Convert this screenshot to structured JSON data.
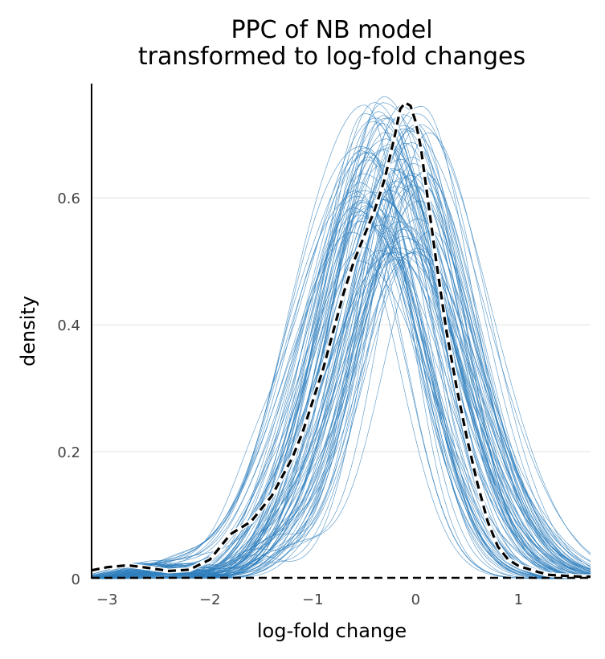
{
  "chart_data": {
    "type": "line",
    "title": [
      "PPC of NB model",
      "transformed to log-fold changes"
    ],
    "xlabel": "log-fold change",
    "ylabel": "density",
    "xlim": [
      -3.15,
      1.7
    ],
    "ylim": [
      0,
      0.78
    ],
    "xticks": [
      {
        "value": -3,
        "label": "−3"
      },
      {
        "value": -2,
        "label": "−2"
      },
      {
        "value": -1,
        "label": "−1"
      },
      {
        "value": 0,
        "label": "0"
      },
      {
        "value": 1,
        "label": "1"
      }
    ],
    "yticks": [
      {
        "value": 0,
        "label": "0"
      },
      {
        "value": 0.2,
        "label": "0.2"
      },
      {
        "value": 0.4,
        "label": "0.4"
      },
      {
        "value": 0.6,
        "label": "0.6"
      }
    ],
    "grid": "horizontal",
    "colors": {
      "posterior_draws": "#2f7fbd",
      "observed": "#000000",
      "grid": "#e0e0e0"
    },
    "series": [
      {
        "role": "observed",
        "style": "dashed",
        "x": [
          -3.15,
          -3.0,
          -2.8,
          -2.6,
          -2.4,
          -2.2,
          -2.0,
          -1.9,
          -1.8,
          -1.7,
          -1.6,
          -1.5,
          -1.4,
          -1.3,
          -1.2,
          -1.1,
          -1.0,
          -0.9,
          -0.8,
          -0.7,
          -0.6,
          -0.5,
          -0.4,
          -0.3,
          -0.2,
          -0.15,
          -0.1,
          -0.05,
          0.0,
          0.05,
          0.1,
          0.2,
          0.3,
          0.4,
          0.5,
          0.6,
          0.7,
          0.8,
          0.9,
          1.0,
          1.1,
          1.2,
          1.3,
          1.4,
          1.5,
          1.6,
          1.7
        ],
        "y": [
          0.013,
          0.018,
          0.021,
          0.017,
          0.012,
          0.014,
          0.03,
          0.05,
          0.07,
          0.08,
          0.09,
          0.11,
          0.13,
          0.16,
          0.19,
          0.23,
          0.28,
          0.33,
          0.39,
          0.45,
          0.5,
          0.54,
          0.58,
          0.63,
          0.7,
          0.74,
          0.75,
          0.745,
          0.72,
          0.68,
          0.62,
          0.5,
          0.39,
          0.3,
          0.22,
          0.15,
          0.09,
          0.05,
          0.03,
          0.02,
          0.015,
          0.01,
          0.006,
          0.005,
          0.004,
          0.003,
          0.003
        ]
      }
    ],
    "posterior_draws": {
      "count": 100,
      "peak_density_range": [
        0.5,
        0.76
      ],
      "peak_location_range": [
        -0.6,
        0.15
      ],
      "spread_range": [
        0.48,
        0.64
      ]
    }
  }
}
